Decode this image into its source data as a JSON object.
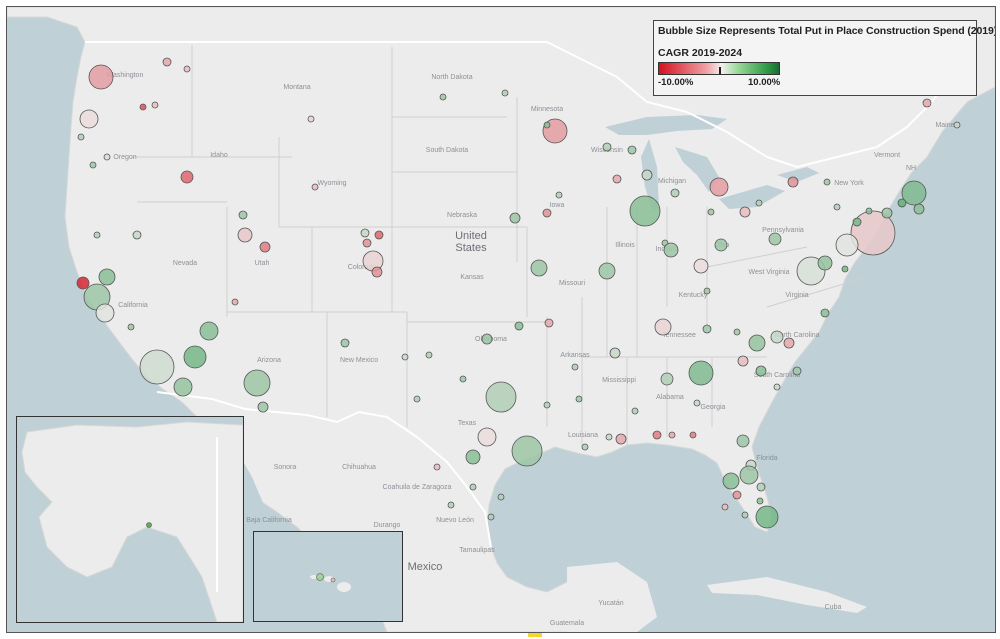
{
  "legend": {
    "title": "Bubble Size Represents Total Put in Place Construction Spend (2019)",
    "color_title": "CAGR 2019-2024",
    "min_label": "-10.00%",
    "max_label": "10.00%",
    "colors": {
      "neg": "#d4111f",
      "neutral": "#f3f0f0",
      "pos": "#1a6b34",
      "land": "#ececec",
      "water": "#bfd0d6"
    }
  },
  "map_labels": {
    "country": "United States",
    "states": [
      "Washington",
      "Montana",
      "North Dakota",
      "Minnesota",
      "Oregon",
      "Idaho",
      "South Dakota",
      "Wisconsin",
      "Michigan",
      "New York",
      "Vermont",
      "NH",
      "Maine",
      "Wyoming",
      "Nebraska",
      "Iowa",
      "Pennsylvania",
      "Nevada",
      "Utah",
      "Colorado",
      "Kansas",
      "Missouri",
      "Illinois",
      "Indiana",
      "Ohio",
      "West Virginia",
      "Virginia",
      "Kentucky",
      "Tennessee",
      "Arizona",
      "New Mexico",
      "Oklahoma",
      "Arkansas",
      "Mississippi",
      "Alabama",
      "Georgia",
      "Louisiana",
      "Texas",
      "California",
      "North Carolina",
      "South Carolina",
      "Florida"
    ],
    "mexico": [
      "Sonora",
      "Chihuahua",
      "Coahuila de Zaragoza",
      "Nuevo León",
      "Tamaulipas",
      "Baja California",
      "Durango",
      "Mexico",
      "Guatemala",
      "Yucatán",
      "Cuba"
    ]
  }
}
